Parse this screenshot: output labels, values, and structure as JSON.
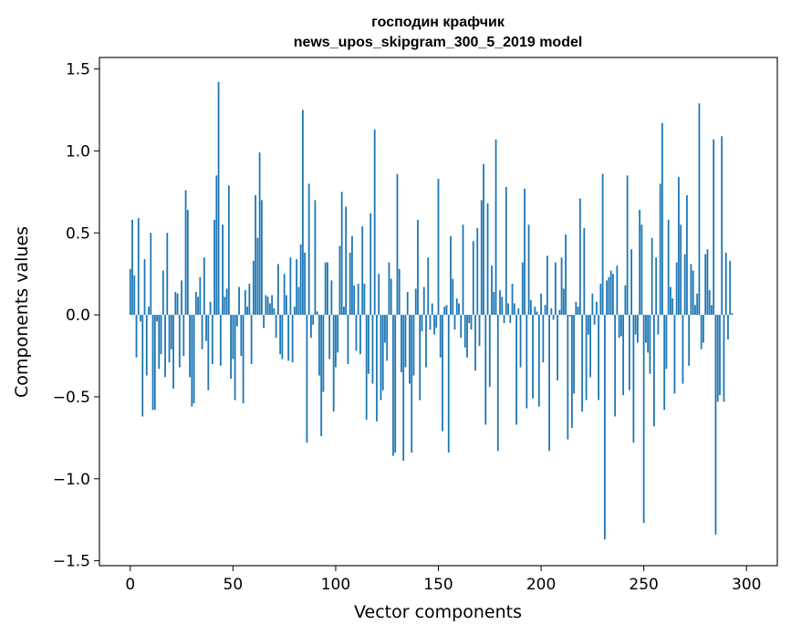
{
  "chart_data": {
    "type": "bar",
    "title_line1": "господин крафчик",
    "title_line2": "news_upos_skipgram_300_5_2019 model",
    "xlabel": "Vector components",
    "ylabel": "Components values",
    "xlim": [
      -15,
      315
    ],
    "ylim": [
      -1.53,
      1.57
    ],
    "xticks": [
      0,
      50,
      100,
      150,
      200,
      250,
      300
    ],
    "xtick_labels": [
      "0",
      "50",
      "100",
      "150",
      "200",
      "250",
      "300"
    ],
    "yticks": [
      -1.5,
      -1.0,
      -0.5,
      0.0,
      0.5,
      1.0,
      1.5
    ],
    "ytick_labels": [
      "−1.5",
      "−1.0",
      "−0.5",
      "0.0",
      "0.5",
      "1.0",
      "1.5"
    ],
    "bar_color": "#1f77b4",
    "values": [
      0.28,
      0.58,
      0.24,
      -0.26,
      0.59,
      -0.04,
      -0.62,
      0.34,
      -0.37,
      0.05,
      0.5,
      -0.58,
      -0.58,
      -0.04,
      -0.33,
      -0.24,
      0.27,
      -0.38,
      0.5,
      -0.29,
      -0.21,
      -0.45,
      0.14,
      0.13,
      -0.32,
      0.21,
      -0.25,
      0.76,
      0.64,
      -0.38,
      -0.56,
      -0.54,
      0.14,
      0.11,
      0.23,
      -0.21,
      0.35,
      -0.16,
      -0.46,
      0.08,
      -0.3,
      0.58,
      0.85,
      1.42,
      -0.31,
      0.55,
      0.11,
      0.16,
      0.79,
      -0.39,
      -0.27,
      -0.52,
      -0.07,
      0.17,
      -0.25,
      -0.54,
      0.15,
      0.05,
      0.19,
      -0.3,
      0.33,
      0.73,
      0.47,
      0.99,
      0.7,
      -0.08,
      0.12,
      0.11,
      0.07,
      0.12,
      0.04,
      -0.14,
      0.31,
      -0.24,
      -0.27,
      0.25,
      0.12,
      -0.28,
      0.35,
      -0.29,
      0.05,
      0.34,
      0.17,
      0.43,
      1.25,
      0.38,
      -0.78,
      0.8,
      -0.14,
      -0.06,
      0.7,
      0.02,
      -0.37,
      -0.74,
      -0.47,
      0.32,
      0.32,
      -0.27,
      0.21,
      -0.59,
      -0.32,
      -0.23,
      0.42,
      0.75,
      0.05,
      0.66,
      -0.3,
      0.38,
      0.48,
      0.18,
      -0.22,
      0.19,
      -0.24,
      0.54,
      0.19,
      -0.64,
      -0.36,
      0.62,
      -0.42,
      1.13,
      -0.65,
      0.25,
      -0.52,
      -0.46,
      -0.17,
      -0.28,
      0.32,
      0.22,
      -0.86,
      -0.84,
      0.86,
      0.28,
      -0.35,
      -0.89,
      -0.32,
      0.14,
      -0.42,
      -0.84,
      -0.37,
      0.16,
      0.58,
      -0.52,
      -0.1,
      0.17,
      -0.32,
      0.35,
      -0.09,
      0.07,
      -0.12,
      -0.08,
      0.83,
      -0.26,
      -0.71,
      0.05,
      0.06,
      -0.84,
      0.48,
      0.22,
      -0.09,
      0.1,
      0.07,
      -0.14,
      0.55,
      -0.2,
      -0.26,
      -0.05,
      -0.09,
      0.45,
      -0.34,
      0.53,
      -0.19,
      0.7,
      0.92,
      -0.67,
      0.68,
      -0.44,
      0.3,
      0.14,
      1.07,
      -0.83,
      0.15,
      0.11,
      -0.05,
      0.78,
      0.07,
      -0.05,
      0.19,
      0.07,
      -0.67,
      0.04,
      -0.32,
      0.32,
      0.77,
      -0.57,
      0.55,
      0.09,
      -0.51,
      0.05,
      0.02,
      -0.56,
      0.13,
      -0.29,
      0.06,
      0.36,
      -0.83,
      0.04,
      -0.03,
      0.32,
      -0.4,
      0.03,
      0.35,
      0.16,
      0.49,
      -0.76,
      -0.01,
      -0.69,
      -0.48,
      0.08,
      0.05,
      0.71,
      -0.59,
      0.53,
      -0.52,
      -0.12,
      -0.38,
      0.13,
      -0.06,
      0.08,
      -0.52,
      0.19,
      0.86,
      -1.37,
      0.21,
      0.23,
      0.27,
      0.25,
      -0.62,
      0.3,
      -0.14,
      -0.13,
      -0.49,
      0.18,
      0.85,
      -0.46,
      0.4,
      -0.78,
      -0.12,
      -0.17,
      0.64,
      0.55,
      -1.27,
      -0.17,
      -0.23,
      -0.36,
      0.47,
      -0.68,
      0.35,
      -0.12,
      0.8,
      1.17,
      -0.58,
      -0.33,
      0.58,
      0.17,
      0.1,
      -0.48,
      0.32,
      0.84,
      0.55,
      -0.42,
      0.37,
      0.73,
      -0.31,
      0.31,
      0.27,
      0.06,
      0.13,
      1.29,
      -0.21,
      -0.17,
      0.37,
      0.4,
      0.15,
      0.06,
      1.07,
      -1.34,
      -0.53,
      -0.49,
      1.09,
      -0.53,
      0.38,
      -0.15,
      0.33,
      0.01
    ]
  }
}
